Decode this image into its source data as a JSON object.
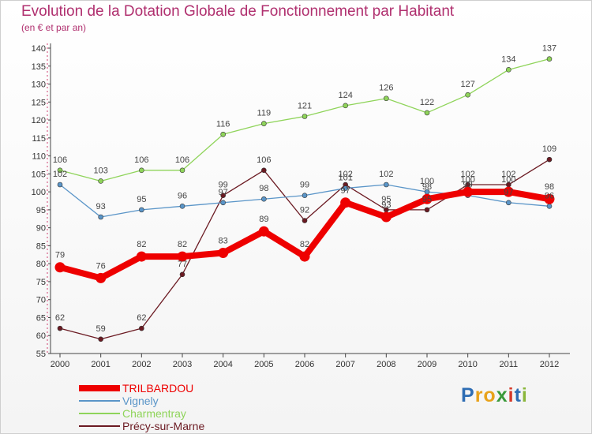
{
  "header": {
    "title": "Evolution de la Dotation Globale de Fonctionnement par Habitant",
    "subtitle": "(en € et par an)"
  },
  "logo": {
    "letters": [
      "P",
      "r",
      "o",
      "x",
      "i",
      "t",
      "i"
    ],
    "colors": [
      "#2e6db4",
      "#e8a21a",
      "#e8a21a",
      "#3a9a3a",
      "#d63a2a",
      "#2e6db4",
      "#8ab63a"
    ]
  },
  "chart_data": {
    "type": "line",
    "title": "Evolution de la Dotation Globale de Fonctionnement par Habitant",
    "subtitle": "(en € et par an)",
    "xlabel": "",
    "ylabel": "",
    "ylim": [
      55,
      140
    ],
    "yticks": [
      55,
      60,
      65,
      70,
      75,
      80,
      85,
      90,
      95,
      100,
      105,
      110,
      115,
      120,
      125,
      130,
      135,
      140
    ],
    "categories": [
      "2000",
      "2001",
      "2002",
      "2003",
      "2004",
      "2005",
      "2006",
      "2007",
      "2008",
      "2009",
      "2010",
      "2011",
      "2012"
    ],
    "grid": false,
    "legend_position": "bottom-left",
    "series": [
      {
        "name": "TRILBARDOU",
        "color": "#ee0000",
        "style": "thick",
        "values": [
          79,
          76,
          82,
          82,
          83,
          89,
          82,
          97,
          93,
          98,
          100,
          100,
          98
        ],
        "labels": [
          "79",
          "76",
          "82",
          "82",
          "83",
          "89",
          "82",
          "97",
          "93",
          "98",
          "100",
          "100",
          "98"
        ]
      },
      {
        "name": "Vignely",
        "color": "#5a95c8",
        "style": "thin",
        "values": [
          102,
          93,
          95,
          96,
          97,
          98,
          99,
          101,
          102,
          100,
          99,
          97,
          96
        ],
        "labels": [
          "102",
          "93",
          "95",
          "96",
          "97",
          "98",
          "99",
          "101",
          "102",
          "100",
          "99",
          "97",
          "96"
        ]
      },
      {
        "name": "Charmentray",
        "color": "#8fd45a",
        "style": "thin",
        "values": [
          106,
          103,
          106,
          106,
          116,
          119,
          121,
          124,
          126,
          122,
          127,
          134,
          137
        ],
        "labels": [
          "106",
          "103",
          "106",
          "106",
          "116",
          "119",
          "121",
          "124",
          "126",
          "122",
          "127",
          "134",
          "137"
        ]
      },
      {
        "name": "Précy-sur-Marne",
        "color": "#6b1a22",
        "style": "thin",
        "values": [
          62,
          59,
          62,
          77,
          99,
          106,
          92,
          102,
          95,
          95,
          102,
          102,
          109
        ],
        "labels": [
          "62",
          "59",
          "62",
          "77",
          "99",
          "106",
          "92",
          "102",
          "95",
          "95",
          "102",
          "102",
          "109"
        ]
      }
    ]
  }
}
